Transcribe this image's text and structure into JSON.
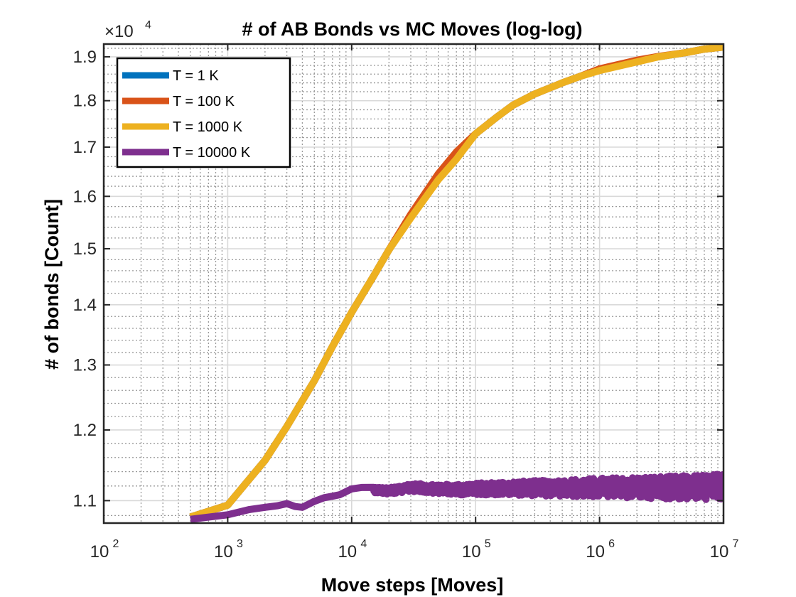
{
  "chart_data": {
    "type": "line",
    "title": "# of AB Bonds vs MC Moves (log-log)",
    "xlabel": "Move steps [Moves]",
    "ylabel": "# of bonds [Count]",
    "x_scale": "log",
    "y_scale": "log",
    "xlim": [
      100,
      10000000
    ],
    "ylim": [
      10700,
      19300
    ],
    "y_multiplier_label": "×10",
    "y_multiplier_exponent": "4",
    "x_ticks": [
      {
        "value": 100,
        "base": "10",
        "exp": "2"
      },
      {
        "value": 1000,
        "base": "10",
        "exp": "3"
      },
      {
        "value": 10000,
        "base": "10",
        "exp": "4"
      },
      {
        "value": 100000,
        "base": "10",
        "exp": "5"
      },
      {
        "value": 1000000,
        "base": "10",
        "exp": "6"
      },
      {
        "value": 10000000,
        "base": "10",
        "exp": "7"
      }
    ],
    "y_ticks": [
      {
        "value": 11000,
        "label": "1.1"
      },
      {
        "value": 12000,
        "label": "1.2"
      },
      {
        "value": 13000,
        "label": "1.3"
      },
      {
        "value": 14000,
        "label": "1.4"
      },
      {
        "value": 15000,
        "label": "1.5"
      },
      {
        "value": 16000,
        "label": "1.6"
      },
      {
        "value": 17000,
        "label": "1.7"
      },
      {
        "value": 18000,
        "label": "1.8"
      },
      {
        "value": 19000,
        "label": "1.9"
      }
    ],
    "grid": true,
    "minor_grid": true,
    "legend_position": "top-left",
    "series": [
      {
        "name": "T = 1 K",
        "color": "#0072BD",
        "x": [
          500,
          1000,
          2000,
          3000,
          5000,
          7000,
          10000,
          15000,
          20000,
          30000,
          50000,
          70000,
          100000,
          150000,
          200000,
          300000,
          500000,
          700000,
          1000000,
          2000000,
          3000000,
          5000000,
          7000000,
          10000000
        ],
        "y": [
          10780,
          10940,
          11560,
          12050,
          12750,
          13300,
          13870,
          14500,
          14980,
          15600,
          16380,
          16800,
          17280,
          17650,
          17900,
          18150,
          18400,
          18550,
          18700,
          18900,
          19000,
          19100,
          19180,
          19230
        ]
      },
      {
        "name": "T = 100 K",
        "color": "#D95319",
        "x": [
          500,
          1000,
          2000,
          3000,
          5000,
          7000,
          10000,
          15000,
          20000,
          30000,
          50000,
          70000,
          100000,
          150000,
          200000,
          300000,
          500000,
          700000,
          1000000,
          2000000,
          3000000,
          5000000,
          7000000,
          10000000
        ],
        "y": [
          10780,
          10940,
          11560,
          12050,
          12750,
          13300,
          13870,
          14500,
          14980,
          15650,
          16450,
          16900,
          17280,
          17650,
          17900,
          18150,
          18400,
          18550,
          18720,
          18920,
          19010,
          19100,
          19180,
          19230
        ]
      },
      {
        "name": "T = 1000 K",
        "color": "#EDB120",
        "x": [
          500,
          1000,
          2000,
          3000,
          5000,
          7000,
          10000,
          15000,
          20000,
          30000,
          50000,
          70000,
          100000,
          150000,
          200000,
          300000,
          500000,
          700000,
          1000000,
          2000000,
          3000000,
          5000000,
          7000000,
          10000000
        ],
        "y": [
          10780,
          10940,
          11560,
          12050,
          12750,
          13300,
          13870,
          14500,
          14980,
          15580,
          16330,
          16750,
          17280,
          17650,
          17900,
          18150,
          18400,
          18550,
          18680,
          18880,
          19000,
          19100,
          19180,
          19230
        ]
      },
      {
        "name": "T = 10000 K",
        "color": "#7E2F8E",
        "x": [
          500,
          1000,
          1500,
          2000,
          2500,
          3000,
          3500,
          4000,
          5000,
          6000,
          7000,
          8000,
          10000,
          12000,
          15000,
          20000,
          30000,
          50000,
          70000,
          100000,
          200000,
          500000,
          1000000,
          2000000,
          5000000,
          10000000
        ],
        "y": [
          10750,
          10810,
          10880,
          10910,
          10930,
          10960,
          10920,
          10910,
          10990,
          11040,
          11060,
          11080,
          11160,
          11180,
          11150,
          11130,
          11180,
          11160,
          11150,
          11160,
          11170,
          11170,
          11180,
          11180,
          11180,
          11190
        ],
        "noise_start": 15000,
        "noise_amplitude": [
          40,
          180
        ]
      }
    ]
  }
}
